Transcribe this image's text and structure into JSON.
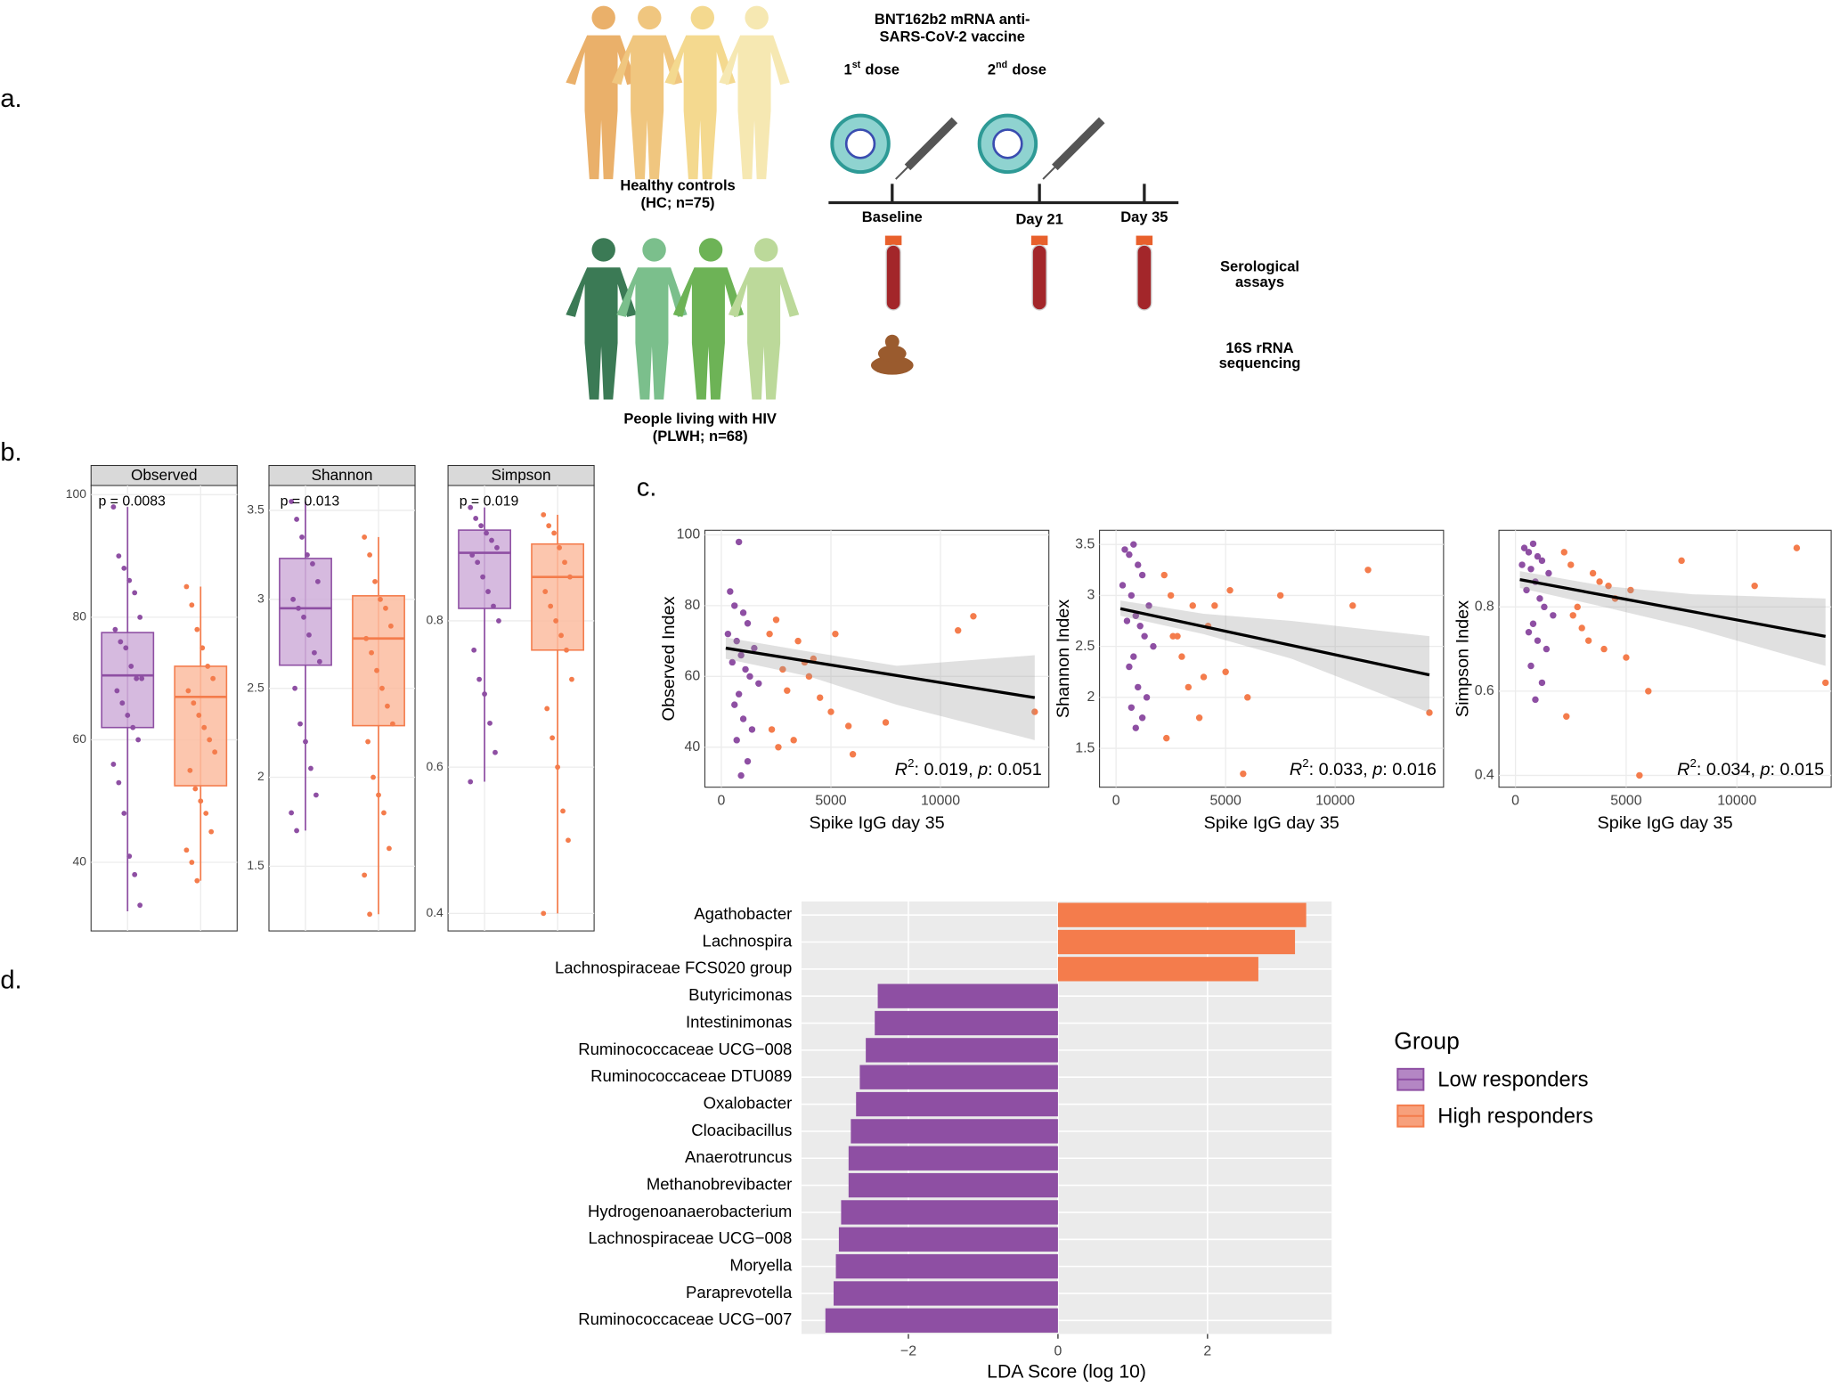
{
  "panel_labels": [
    "a.",
    "b.",
    "c.",
    "d."
  ],
  "diagram": {
    "title": [
      "BNT162b2 mRNA anti-",
      "SARS-CoV-2 vaccine"
    ],
    "doses": [
      {
        "n": "1",
        "sup": "st",
        "text": "dose"
      },
      {
        "n": "2",
        "sup": "nd",
        "text": "dose"
      }
    ],
    "timepoints": [
      "Baseline",
      "Day 21",
      "Day 35"
    ],
    "groups": [
      [
        "Healthy controls",
        "(HC; n=75)"
      ],
      [
        "People living with HIV",
        "(PLWH; n=68)"
      ]
    ],
    "assays": [
      [
        "Serological",
        "assays"
      ],
      [
        "16S rRNA",
        "sequencing"
      ]
    ]
  },
  "chart_data": [
    {
      "type": "box",
      "title": "Observed",
      "annotation": "p = 0.0083",
      "ylim": [
        28.8,
        101.5
      ],
      "yticks": [
        40,
        60,
        80,
        100
      ],
      "series": [
        {
          "color": "#8e4fa3",
          "fill": "#cfaed9",
          "q1": 62,
          "median": 70.5,
          "q3": 77.5,
          "min": 32,
          "max": 98,
          "points": [
            98,
            90,
            88,
            86,
            84,
            80,
            78,
            76,
            75,
            72,
            70,
            70,
            68,
            66,
            64,
            62,
            60,
            56,
            53,
            48,
            41,
            38,
            33
          ]
        },
        {
          "color": "#f47c4c",
          "fill": "#fbbca0",
          "q1": 52.5,
          "median": 67,
          "q3": 72,
          "min": 37,
          "max": 85,
          "points": [
            85,
            82,
            78,
            75,
            72,
            70,
            68,
            66,
            64,
            62,
            60,
            58,
            55,
            52,
            50,
            48,
            45,
            42,
            40,
            37
          ]
        }
      ]
    },
    {
      "type": "box",
      "title": "Shannon",
      "annotation": "p = 0.013",
      "ylim": [
        1.136,
        3.64
      ],
      "yticks": [
        1.5,
        2.0,
        2.5,
        3.0,
        3.5
      ],
      "series": [
        {
          "color": "#8e4fa3",
          "fill": "#cfaed9",
          "q1": 2.63,
          "median": 2.95,
          "q3": 3.23,
          "min": 1.7,
          "max": 3.55,
          "points": [
            3.55,
            3.45,
            3.35,
            3.25,
            3.2,
            3.1,
            3.0,
            2.95,
            2.9,
            2.8,
            2.7,
            2.65,
            2.5,
            2.3,
            2.2,
            2.05,
            1.9,
            1.8,
            1.7
          ]
        },
        {
          "color": "#f47c4c",
          "fill": "#fbbca0",
          "q1": 2.29,
          "median": 2.78,
          "q3": 3.02,
          "min": 1.23,
          "max": 3.35,
          "points": [
            3.35,
            3.25,
            3.1,
            3.0,
            2.95,
            2.85,
            2.78,
            2.7,
            2.6,
            2.5,
            2.4,
            2.3,
            2.2,
            2.0,
            1.9,
            1.8,
            1.6,
            1.45,
            1.23
          ]
        }
      ]
    },
    {
      "type": "box",
      "title": "Simpson",
      "annotation": "p = 0.019",
      "ylim": [
        0.376,
        0.985
      ],
      "yticks": [
        0.4,
        0.6,
        0.8
      ],
      "series": [
        {
          "color": "#8e4fa3",
          "fill": "#cfaed9",
          "q1": 0.817,
          "median": 0.893,
          "q3": 0.924,
          "min": 0.58,
          "max": 0.955,
          "points": [
            0.955,
            0.94,
            0.93,
            0.92,
            0.91,
            0.9,
            0.89,
            0.88,
            0.86,
            0.84,
            0.82,
            0.8,
            0.76,
            0.72,
            0.7,
            0.66,
            0.62,
            0.58
          ]
        },
        {
          "color": "#f47c4c",
          "fill": "#fbbca0",
          "q1": 0.76,
          "median": 0.86,
          "q3": 0.905,
          "min": 0.4,
          "max": 0.945,
          "points": [
            0.945,
            0.93,
            0.92,
            0.9,
            0.88,
            0.86,
            0.84,
            0.82,
            0.8,
            0.78,
            0.76,
            0.72,
            0.68,
            0.64,
            0.6,
            0.54,
            0.5,
            0.4
          ]
        }
      ]
    },
    {
      "type": "scatter",
      "xlabel": "Spike IgG day 35",
      "ylabel": "Observed Index",
      "xlim": [
        -753,
        14946
      ],
      "xticks": [
        0,
        5000,
        10000
      ],
      "ylim": [
        28.7,
        101.3
      ],
      "yticks": [
        40,
        60,
        80,
        100
      ],
      "series": [
        {
          "color": "#8e4fa3",
          "x": [
            800,
            400,
            600,
            1000,
            1200,
            300,
            700,
            1500,
            900,
            500,
            1100,
            1300,
            1700,
            800,
            600,
            1000,
            1400,
            700,
            1200,
            900
          ],
          "y": [
            98,
            84,
            80,
            78,
            75,
            72,
            70,
            68,
            66,
            64,
            62,
            60,
            58,
            55,
            52,
            48,
            45,
            42,
            36,
            32
          ]
        },
        {
          "color": "#f47c4c",
          "x": [
            2200,
            2500,
            3500,
            4200,
            5200,
            7500,
            10800,
            11500,
            14300,
            2800,
            3000,
            4000,
            5000,
            6000,
            2300,
            3800,
            5800,
            2600,
            3300,
            4500
          ],
          "y": [
            72,
            76,
            70,
            65,
            72,
            47,
            73,
            77,
            50,
            62,
            56,
            60,
            50,
            38,
            45,
            64,
            46,
            40,
            42,
            54
          ]
        }
      ],
      "fit": {
        "x": [
          200,
          14300
        ],
        "y": [
          68,
          54
        ]
      },
      "band": {
        "x": [
          200,
          4000,
          8000,
          14300
        ],
        "lower": [
          65,
          60,
          52,
          42
        ],
        "upper": [
          71,
          67,
          63,
          66
        ]
      },
      "annotation": {
        "r": "R",
        "sup": "2",
        "r2": ": 0.019, ",
        "p": "p",
        "pv": ": 0.051"
      }
    },
    {
      "type": "scatter",
      "xlabel": "Spike IgG day 35",
      "ylabel": "Shannon Index",
      "xlim": [
        -753,
        14946
      ],
      "xticks": [
        0,
        5000,
        10000
      ],
      "ylim": [
        1.119,
        3.639
      ],
      "yticks": [
        1.5,
        2.0,
        2.5,
        3.0,
        3.5
      ],
      "series": [
        {
          "color": "#8e4fa3",
          "x": [
            800,
            400,
            600,
            1000,
            1200,
            300,
            700,
            1500,
            900,
            500,
            1100,
            1300,
            1700,
            800,
            600,
            1000,
            1400,
            700,
            1200,
            900
          ],
          "y": [
            3.5,
            3.45,
            3.4,
            3.3,
            3.2,
            3.1,
            3.0,
            2.9,
            2.8,
            2.75,
            2.7,
            2.6,
            2.5,
            2.4,
            2.3,
            2.1,
            2.0,
            1.9,
            1.8,
            1.7
          ]
        },
        {
          "color": "#f47c4c",
          "x": [
            2200,
            2500,
            3500,
            4200,
            5200,
            7500,
            10800,
            11500,
            14300,
            2800,
            3000,
            4000,
            5000,
            6000,
            2300,
            3800,
            5800,
            2600,
            3300,
            4500
          ],
          "y": [
            3.2,
            3.0,
            2.9,
            2.7,
            3.05,
            3.0,
            2.9,
            3.25,
            1.85,
            2.6,
            2.4,
            2.2,
            2.25,
            2.0,
            1.6,
            1.8,
            1.25,
            2.6,
            2.1,
            2.9
          ]
        }
      ],
      "fit": {
        "x": [
          200,
          14300
        ],
        "y": [
          2.87,
          2.22
        ]
      },
      "band": {
        "x": [
          200,
          4000,
          8000,
          14300
        ],
        "lower": [
          2.8,
          2.62,
          2.38,
          1.85
        ],
        "upper": [
          2.95,
          2.82,
          2.75,
          2.6
        ]
      },
      "annotation": {
        "r": "R",
        "sup": "2",
        "r2": ": 0.033, ",
        "p": "p",
        "pv": ": 0.016"
      }
    },
    {
      "type": "scatter",
      "xlabel": "Spike IgG day 35",
      "ylabel": "Simpson Index",
      "xlim": [
        -745,
        14255
      ],
      "xticks": [
        0,
        5000,
        10000
      ],
      "ylim": [
        0.372,
        0.982
      ],
      "yticks": [
        0.4,
        0.6,
        0.8
      ],
      "series": [
        {
          "color": "#8e4fa3",
          "x": [
            800,
            400,
            600,
            1000,
            1200,
            300,
            700,
            1500,
            900,
            500,
            1100,
            1300,
            1700,
            800,
            600,
            1000,
            1400,
            700,
            1200,
            900
          ],
          "y": [
            0.95,
            0.94,
            0.93,
            0.92,
            0.91,
            0.9,
            0.89,
            0.88,
            0.86,
            0.84,
            0.82,
            0.8,
            0.78,
            0.76,
            0.74,
            0.72,
            0.7,
            0.66,
            0.62,
            0.58
          ]
        },
        {
          "color": "#f47c4c",
          "x": [
            2200,
            2500,
            3500,
            4200,
            5200,
            7500,
            10800,
            12700,
            14000,
            2800,
            3000,
            4000,
            5000,
            6000,
            2300,
            3800,
            5600,
            2600,
            3300,
            4500
          ],
          "y": [
            0.93,
            0.9,
            0.88,
            0.85,
            0.84,
            0.91,
            0.85,
            0.94,
            0.62,
            0.8,
            0.75,
            0.7,
            0.68,
            0.6,
            0.54,
            0.86,
            0.4,
            0.78,
            0.72,
            0.82
          ]
        }
      ],
      "fit": {
        "x": [
          200,
          14000
        ],
        "y": [
          0.865,
          0.73
        ]
      },
      "band": {
        "x": [
          200,
          4000,
          8000,
          14000
        ],
        "lower": [
          0.845,
          0.8,
          0.75,
          0.66
        ],
        "upper": [
          0.885,
          0.85,
          0.83,
          0.82
        ]
      },
      "annotation": {
        "r": "R",
        "sup": "2",
        "r2": ": 0.034, ",
        "p": "p",
        "pv": ": 0.015"
      }
    },
    {
      "type": "hbar",
      "xlabel": "LDA Score (log 10)",
      "xlim": [
        -3.43,
        3.66
      ],
      "xticks": [
        {
          "value": -2,
          "label": "−2"
        },
        0,
        2
      ],
      "categories": [
        "Agathobacter",
        "Lachnospira",
        "Lachnospiraceae FCS020 group",
        "Butyricimonas",
        "Intestinimonas",
        "Ruminococcaceae UCG−008",
        "Ruminococcaceae DTU089",
        "Oxalobacter",
        "Cloacibacillus",
        "Anaerotruncus",
        "Methanobrevibacter",
        "Hydrogenoanaerobacterium",
        "Lachnospiraceae UCG−008",
        "Moryella",
        "Paraprevotella",
        "Ruminococcaceae UCG−007"
      ],
      "legend": {
        "title": "Group"
      },
      "series": [
        {
          "name": "Low responders",
          "color": "#8e4fa3",
          "key_fill": "#b486c4",
          "values": [
            null,
            null,
            null,
            -2.41,
            -2.45,
            -2.57,
            -2.65,
            -2.7,
            -2.77,
            -2.8,
            -2.8,
            -2.9,
            -2.93,
            -2.97,
            -3.0,
            -3.11
          ]
        },
        {
          "name": "High responders",
          "color": "#f47c4c",
          "key_fill": "#f7a07c",
          "values": [
            3.32,
            3.17,
            2.68,
            null,
            null,
            null,
            null,
            null,
            null,
            null,
            null,
            null,
            null,
            null,
            null,
            null
          ]
        }
      ]
    }
  ]
}
